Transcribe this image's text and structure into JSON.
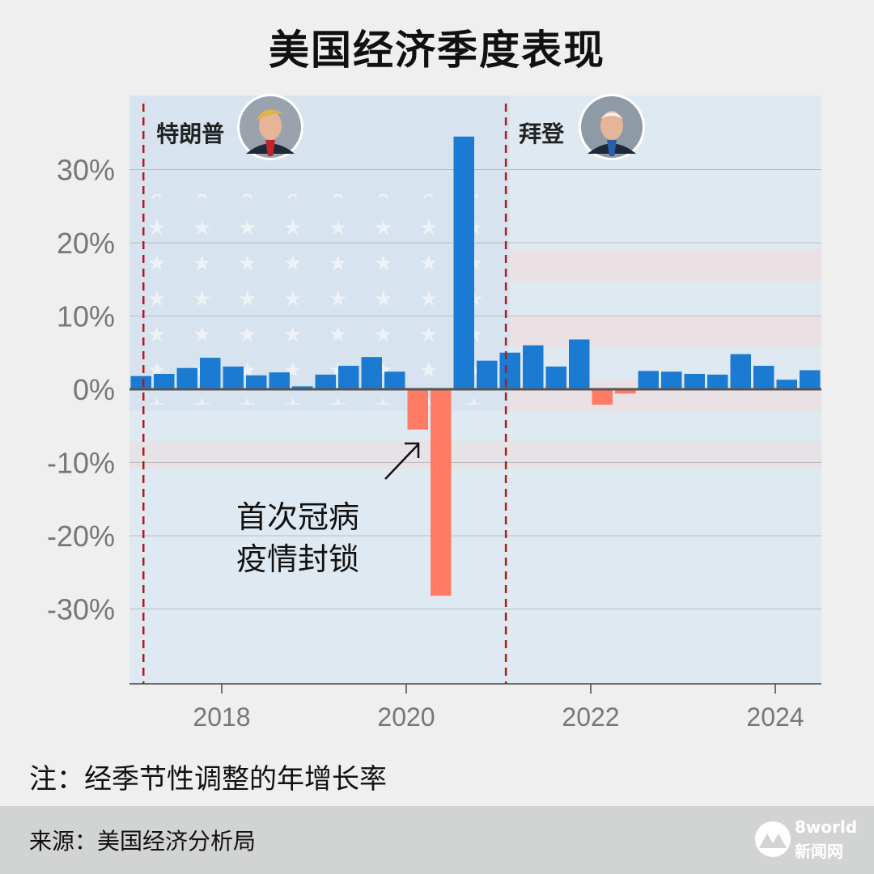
{
  "title": "美国经济季度表现",
  "note": "注：经季节性调整的年增长率",
  "source": "来源：美国经济分析局",
  "logo": {
    "line1": "8world",
    "line2": "新闻网"
  },
  "annotation": {
    "line1": "首次冠病",
    "line2": "疫情封锁"
  },
  "presidents": [
    {
      "name": "特朗普",
      "start_year": 2017.125,
      "portrait": "trump-portrait"
    },
    {
      "name": "拜登",
      "start_year": 2021.08,
      "portrait": "biden-portrait"
    }
  ],
  "colors": {
    "positive": "#1b7bd2",
    "negative": "#ff7b63",
    "divider": "#b01c1c",
    "axis": "#555555"
  },
  "chart_data": {
    "type": "bar",
    "xlabel": "",
    "ylabel": "",
    "ylim": [
      -40,
      40
    ],
    "yticks": [
      30,
      20,
      10,
      0,
      -10,
      -20,
      -30
    ],
    "ytick_labels": [
      "30%",
      "20%",
      "10%",
      "0%",
      "-10%",
      "-20%",
      "-30%"
    ],
    "xticks": [
      2018,
      2020,
      2022,
      2024
    ],
    "xtick_labels": [
      "2018",
      "2020",
      "2022",
      "2024"
    ],
    "series": [
      {
        "quarters": [
          "2017Q1",
          "2017Q2",
          "2017Q3",
          "2017Q4",
          "2018Q1",
          "2018Q2",
          "2018Q3",
          "2018Q4",
          "2019Q1",
          "2019Q2",
          "2019Q3",
          "2019Q4",
          "2020Q1",
          "2020Q2",
          "2020Q3",
          "2020Q4",
          "2021Q1",
          "2021Q2",
          "2021Q3",
          "2021Q4",
          "2022Q1",
          "2022Q2",
          "2022Q3",
          "2022Q4",
          "2023Q1",
          "2023Q2",
          "2023Q3",
          "2023Q4",
          "2024Q1",
          "2024Q2"
        ],
        "values": [
          1.8,
          2.1,
          2.9,
          4.3,
          3.1,
          1.9,
          2.3,
          0.4,
          2.0,
          3.2,
          4.4,
          2.4,
          -5.5,
          -28.2,
          34.5,
          3.9,
          5.0,
          6.0,
          3.1,
          6.8,
          -2.1,
          -0.6,
          2.5,
          2.4,
          2.1,
          2.0,
          4.8,
          3.2,
          1.3,
          2.6
        ]
      }
    ]
  }
}
